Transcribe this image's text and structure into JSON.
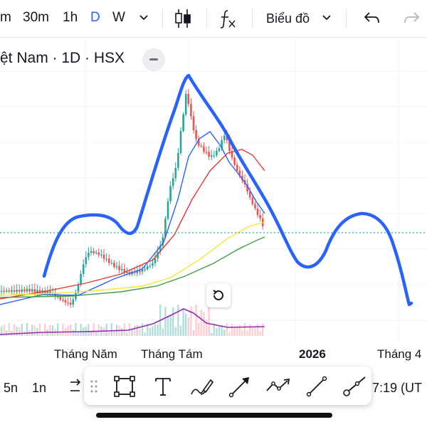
{
  "toolbar": {
    "timeframes": [
      {
        "label": "m"
      },
      {
        "label": "30m"
      },
      {
        "label": "1h"
      },
      {
        "label": "D",
        "active": true
      },
      {
        "label": "W"
      }
    ],
    "chart_type_menu_label": "Biểu đồ",
    "accent_color": "#2962ff"
  },
  "legend": {
    "symbol_title": "ệt Nam · 1D · HSX"
  },
  "time_axis": {
    "labels": [
      "Tháng Năm",
      "Tháng Tám",
      "2026",
      "Tháng 4"
    ]
  },
  "bottom_bar": {
    "ranges": [
      "5n",
      "1n"
    ],
    "clock": "7:19 (UT"
  },
  "drawing_tools": [
    {
      "icon": "rectangle-icon"
    },
    {
      "icon": "text-icon"
    },
    {
      "icon": "brush-icon"
    },
    {
      "icon": "arrow-icon"
    },
    {
      "icon": "path-icon"
    },
    {
      "icon": "trend-line-icon"
    },
    {
      "icon": "ray-icon"
    }
  ],
  "colors": {
    "candle_up": "#26a69a",
    "candle_down": "#ef5350",
    "ma_fast": "#2962ff",
    "ma_mid": "#e53935",
    "ma_slow": "#f5e63b",
    "ma_long": "#43a047",
    "volume_ma": "#9c27b0",
    "drawing": "#2962ff"
  }
}
